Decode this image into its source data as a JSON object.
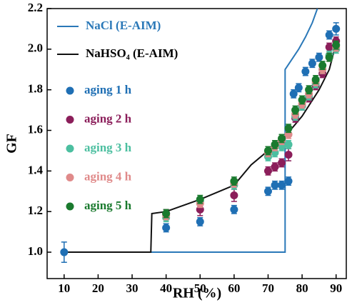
{
  "chart_data": {
    "type": "scatter",
    "xlabel": "RH (%)",
    "ylabel": "GF",
    "xlim": [
      5,
      93
    ],
    "ylim": [
      0.87,
      2.2
    ],
    "xticks": [
      10,
      20,
      30,
      40,
      50,
      60,
      70,
      80,
      90
    ],
    "yticks": [
      {
        "value": 1,
        "label": "1.0"
      },
      1.2,
      1.4,
      1.6,
      1.8,
      {
        "value": 2,
        "label": "2.0"
      },
      2.2
    ],
    "series": [
      {
        "name": "NaCl (E-AIM)",
        "type": "line",
        "color": "#2a78b8",
        "x": [
          10,
          75,
          75,
          77,
          79,
          81,
          83,
          84.5
        ],
        "values": [
          1.0,
          1.0,
          1.9,
          1.95,
          2.0,
          2.06,
          2.13,
          2.2
        ]
      },
      {
        "name": "NaHSO₄ (E-AIM)",
        "type": "line",
        "color": "#111111",
        "x": [
          10,
          35.5,
          35.8,
          40,
          50,
          60,
          65,
          70,
          75,
          80,
          85,
          88,
          90
        ],
        "values": [
          1.0,
          1.0,
          1.19,
          1.2,
          1.26,
          1.33,
          1.43,
          1.5,
          1.57,
          1.67,
          1.8,
          1.9,
          2.03
        ]
      },
      {
        "name": "aging 1 h",
        "type": "scatter",
        "color": "#1f6fb4",
        "x": [
          10,
          40,
          50,
          60,
          70,
          72,
          74,
          76,
          77.5,
          79,
          81,
          83,
          85,
          88,
          90
        ],
        "values": [
          1.0,
          1.12,
          1.15,
          1.21,
          1.3,
          1.33,
          1.33,
          1.35,
          1.78,
          1.81,
          1.89,
          1.93,
          1.96,
          2.07,
          2.1
        ],
        "errors": [
          0.05,
          0.02,
          0.02,
          0.02,
          0.02,
          0.02,
          0.02,
          0.02,
          0.02,
          0.02,
          0.02,
          0.02,
          0.02,
          0.02,
          0.03
        ]
      },
      {
        "name": "aging 2 h",
        "type": "scatter",
        "color": "#8b1e5a",
        "x": [
          40,
          50,
          60,
          70,
          72,
          74,
          76,
          78,
          80,
          82,
          84,
          86,
          88,
          90
        ],
        "values": [
          1.19,
          1.21,
          1.28,
          1.4,
          1.42,
          1.44,
          1.48,
          1.66,
          1.72,
          1.76,
          1.82,
          1.88,
          2.01,
          2.04
        ],
        "errors": [
          0.02,
          0.03,
          0.03,
          0.02,
          0.02,
          0.02,
          0.03,
          0.02,
          0.02,
          0.02,
          0.02,
          0.02,
          0.02,
          0.02
        ]
      },
      {
        "name": "aging 3 h",
        "type": "scatter",
        "color": "#4cbfa0",
        "x": [
          40,
          50,
          60,
          70,
          72,
          74,
          76,
          78,
          80,
          82,
          84,
          86,
          88,
          90
        ],
        "values": [
          1.17,
          1.25,
          1.33,
          1.47,
          1.49,
          1.52,
          1.53,
          1.67,
          1.72,
          1.77,
          1.83,
          1.9,
          1.97,
          2.0
        ],
        "errors": [
          0.02,
          0.02,
          0.02,
          0.02,
          0.02,
          0.02,
          0.02,
          0.02,
          0.02,
          0.02,
          0.02,
          0.02,
          0.02,
          0.02
        ]
      },
      {
        "name": "aging 4 h",
        "type": "scatter",
        "color": "#e08a8a",
        "x": [
          40,
          50,
          60,
          70,
          72,
          74,
          76,
          78,
          80,
          82,
          84,
          86,
          88,
          90
        ],
        "values": [
          1.18,
          1.24,
          1.34,
          1.49,
          1.52,
          1.55,
          1.58,
          1.68,
          1.73,
          1.78,
          1.84,
          1.9,
          1.96,
          2.01
        ],
        "errors": [
          0.02,
          0.02,
          0.02,
          0.02,
          0.02,
          0.02,
          0.02,
          0.02,
          0.02,
          0.02,
          0.02,
          0.02,
          0.02,
          0.02
        ]
      },
      {
        "name": "aging 5 h",
        "type": "scatter",
        "color": "#1a7a2e",
        "x": [
          40,
          50,
          60,
          70,
          72,
          74,
          76,
          78,
          80,
          82,
          84,
          86,
          88,
          90
        ],
        "values": [
          1.19,
          1.26,
          1.35,
          1.5,
          1.53,
          1.56,
          1.61,
          1.7,
          1.75,
          1.8,
          1.85,
          1.92,
          1.96,
          2.02
        ],
        "errors": [
          0.02,
          0.02,
          0.02,
          0.02,
          0.02,
          0.02,
          0.02,
          0.02,
          0.02,
          0.02,
          0.02,
          0.02,
          0.02,
          0.02
        ]
      }
    ]
  }
}
